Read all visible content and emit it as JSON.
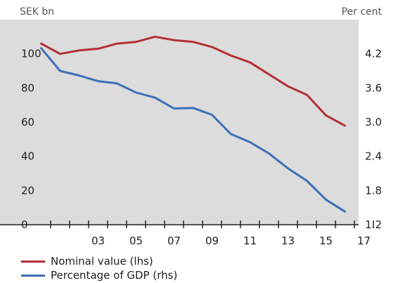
{
  "chart_data": {
    "type": "line",
    "y_left_unit": "SEK bn",
    "y_right_unit": "Per cent",
    "y_left_range": [
      0,
      120
    ],
    "y_right_range": [
      1.2,
      4.8
    ],
    "y_left_ticks": [
      "0",
      "20",
      "40",
      "60",
      "80",
      "100"
    ],
    "y_right_ticks": [
      "1.2",
      "1.8",
      "2.4",
      "3.0",
      "3.6",
      "4.2"
    ],
    "x_ticks": [
      "03",
      "05",
      "07",
      "09",
      "11",
      "13",
      "15",
      "17"
    ],
    "x": [
      2001,
      2002,
      2003,
      2004,
      2005,
      2006,
      2007,
      2008,
      2009,
      2010,
      2011,
      2012,
      2013,
      2014,
      2015,
      2016,
      2017,
      2018
    ],
    "series": [
      {
        "name": "Nominal value (lhs)",
        "axis": "left",
        "color": "#b52f36",
        "values": [
          106,
          100,
          102,
          103,
          106,
          107,
          110,
          108,
          107,
          104,
          99,
          95,
          88,
          81,
          76,
          64,
          58,
          null
        ]
      },
      {
        "name": "Percentage of GDP (rhs)",
        "axis": "right",
        "color": "#3c6fb7",
        "values": [
          4.3,
          3.9,
          3.82,
          3.72,
          3.68,
          3.52,
          3.43,
          3.24,
          3.25,
          3.13,
          2.79,
          2.65,
          2.45,
          2.19,
          1.97,
          1.64,
          1.43,
          null
        ]
      }
    ],
    "grid": false,
    "legend_position": "bottom-left"
  },
  "colors": {
    "plot_background": "#dcdcdc",
    "axis": "#222222"
  }
}
